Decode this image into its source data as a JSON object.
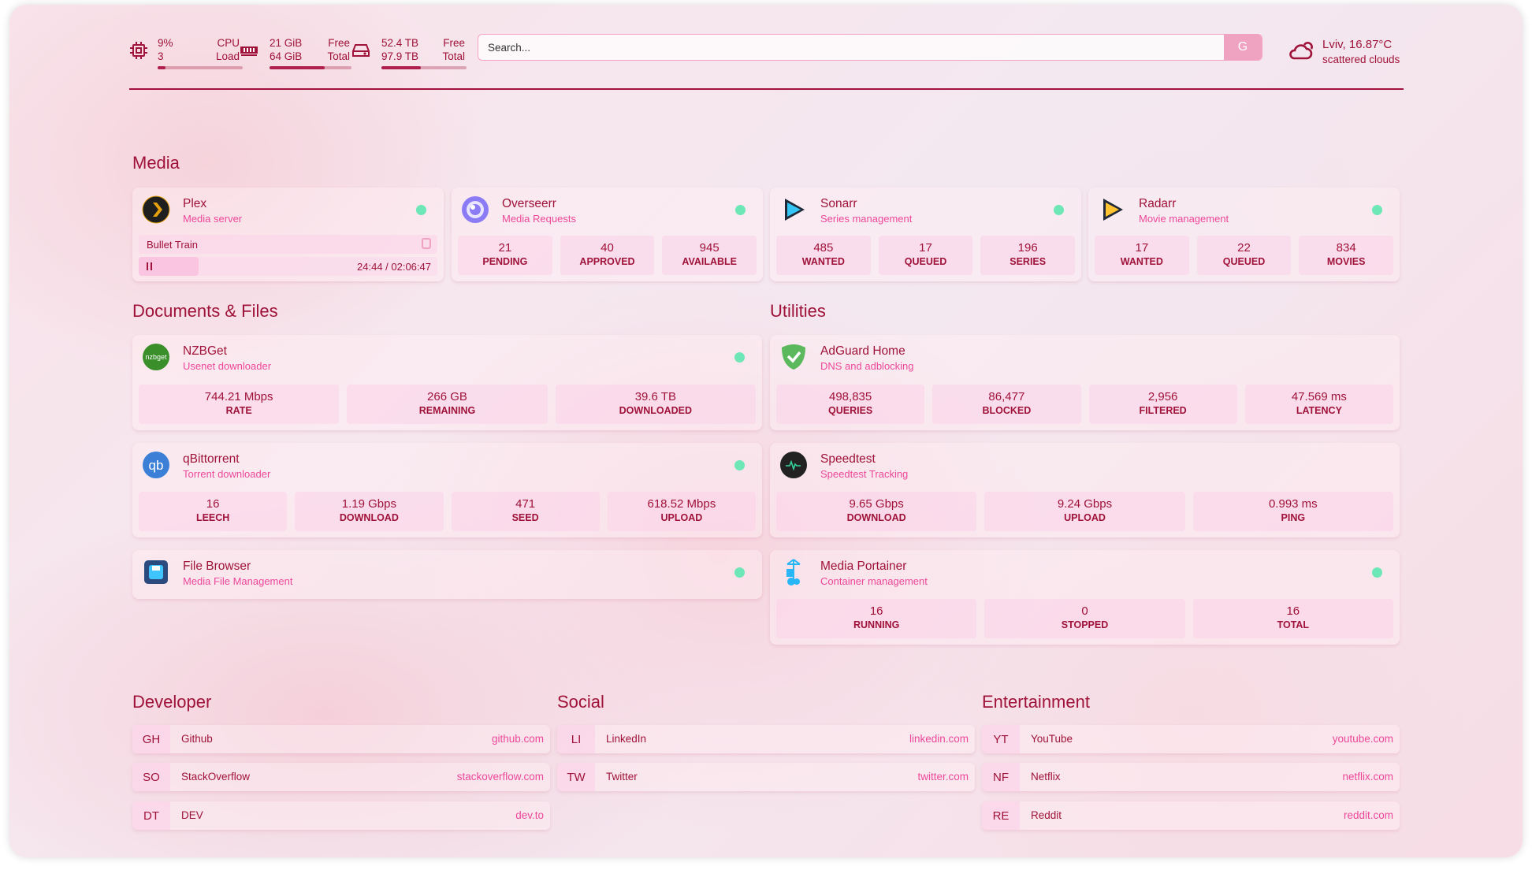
{
  "resources": {
    "cpu": {
      "value": "9%",
      "sub": "3",
      "label1": "CPU",
      "label2": "Load",
      "percent": 9,
      "icon": "cpu-icon"
    },
    "memory": {
      "value": "21 GiB",
      "sub": "64 GiB",
      "label1": "Free",
      "label2": "Total",
      "percent": 67,
      "icon": "memory-icon"
    },
    "disk": {
      "value": "52.4 TB",
      "sub": "97.9 TB",
      "label1": "Free",
      "label2": "Total",
      "percent": 46,
      "icon": "disk-icon"
    }
  },
  "search": {
    "placeholder": "Search...",
    "button": "G"
  },
  "weather": {
    "location": "Lviv, 16.87°C",
    "condition": "scattered clouds",
    "icon": "cloud-sun-icon"
  },
  "colors": {
    "accent": "#9f1239",
    "subtitle": "#ec4899",
    "status_ok": "#6ee7b7"
  },
  "media": {
    "title": "Media",
    "plex": {
      "name": "Plex",
      "desc": "Media server",
      "now_playing": "Bullet Train",
      "time": "24:44 / 02:06:47",
      "progress": 0.2
    },
    "services": [
      {
        "name": "Overseerr",
        "desc": "Media Requests",
        "stats": [
          {
            "v": "21",
            "l": "PENDING"
          },
          {
            "v": "40",
            "l": "APPROVED"
          },
          {
            "v": "945",
            "l": "AVAILABLE"
          }
        ]
      },
      {
        "name": "Sonarr",
        "desc": "Series management",
        "stats": [
          {
            "v": "485",
            "l": "WANTED"
          },
          {
            "v": "17",
            "l": "QUEUED"
          },
          {
            "v": "196",
            "l": "SERIES"
          }
        ]
      },
      {
        "name": "Radarr",
        "desc": "Movie management",
        "stats": [
          {
            "v": "17",
            "l": "WANTED"
          },
          {
            "v": "22",
            "l": "QUEUED"
          },
          {
            "v": "834",
            "l": "MOVIES"
          }
        ]
      }
    ]
  },
  "documents": {
    "title": "Documents & Files",
    "services": [
      {
        "name": "NZBGet",
        "desc": "Usenet downloader",
        "stats": [
          {
            "v": "744.21 Mbps",
            "l": "RATE"
          },
          {
            "v": "266 GB",
            "l": "REMAINING"
          },
          {
            "v": "39.6 TB",
            "l": "DOWNLOADED"
          }
        ]
      },
      {
        "name": "qBittorrent",
        "desc": "Torrent downloader",
        "stats": [
          {
            "v": "16",
            "l": "LEECH"
          },
          {
            "v": "1.19 Gbps",
            "l": "DOWNLOAD"
          },
          {
            "v": "471",
            "l": "SEED"
          },
          {
            "v": "618.52 Mbps",
            "l": "UPLOAD"
          }
        ]
      },
      {
        "name": "File Browser",
        "desc": "Media File Management",
        "stats": []
      }
    ]
  },
  "utilities": {
    "title": "Utilities",
    "services": [
      {
        "name": "AdGuard Home",
        "desc": "DNS and adblocking",
        "stats": [
          {
            "v": "498,835",
            "l": "QUERIES"
          },
          {
            "v": "86,477",
            "l": "BLOCKED"
          },
          {
            "v": "2,956",
            "l": "FILTERED"
          },
          {
            "v": "47.569 ms",
            "l": "LATENCY"
          }
        ]
      },
      {
        "name": "Speedtest",
        "desc": "Speedtest Tracking",
        "stats": [
          {
            "v": "9.65 Gbps",
            "l": "DOWNLOAD"
          },
          {
            "v": "9.24 Gbps",
            "l": "UPLOAD"
          },
          {
            "v": "0.993 ms",
            "l": "PING"
          }
        ]
      },
      {
        "name": "Media Portainer",
        "desc": "Container management",
        "stats": [
          {
            "v": "16",
            "l": "RUNNING"
          },
          {
            "v": "0",
            "l": "STOPPED"
          },
          {
            "v": "16",
            "l": "TOTAL"
          }
        ]
      }
    ]
  },
  "bookmarks": [
    {
      "title": "Developer",
      "items": [
        {
          "abbr": "GH",
          "name": "Github",
          "url": "github.com"
        },
        {
          "abbr": "SO",
          "name": "StackOverflow",
          "url": "stackoverflow.com"
        },
        {
          "abbr": "DT",
          "name": "DEV",
          "url": "dev.to"
        }
      ]
    },
    {
      "title": "Social",
      "items": [
        {
          "abbr": "LI",
          "name": "LinkedIn",
          "url": "linkedin.com"
        },
        {
          "abbr": "TW",
          "name": "Twitter",
          "url": "twitter.com"
        }
      ]
    },
    {
      "title": "Entertainment",
      "items": [
        {
          "abbr": "YT",
          "name": "YouTube",
          "url": "youtube.com"
        },
        {
          "abbr": "NF",
          "name": "Netflix",
          "url": "netflix.com"
        },
        {
          "abbr": "RE",
          "name": "Reddit",
          "url": "reddit.com"
        }
      ]
    }
  ]
}
